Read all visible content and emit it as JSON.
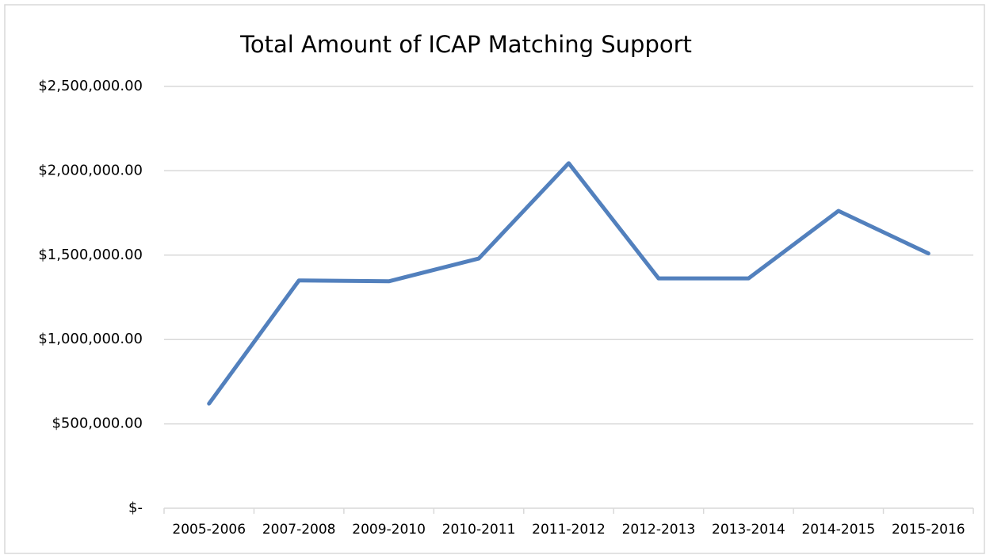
{
  "chart_data": {
    "type": "line",
    "title": "Total Amount of ICAP Matching Support",
    "categories": [
      "2005-2006",
      "2007-2008",
      "2009-2010",
      "2010-2011",
      "2011-2012",
      "2012-2013",
      "2013-2014",
      "2014-2015",
      "2015-2016"
    ],
    "series": [
      {
        "name": "Total Amount of ICAP Matching Support",
        "color": "#5280bd",
        "values": [
          620000,
          1350000,
          1345000,
          1480000,
          2045000,
          1362000,
          1362000,
          1762000,
          1510000
        ]
      }
    ],
    "ylim": [
      0,
      2500000
    ],
    "yticks": [
      {
        "value": 0,
        "label": "$-"
      },
      {
        "value": 500000,
        "label": "$500,000.00"
      },
      {
        "value": 1000000,
        "label": "$1,000,000.00"
      },
      {
        "value": 1500000,
        "label": "$1,500,000.00"
      },
      {
        "value": 2000000,
        "label": "$2,000,000.00"
      },
      {
        "value": 2500000,
        "label": "$2,500,000.00"
      }
    ],
    "grid": true
  }
}
